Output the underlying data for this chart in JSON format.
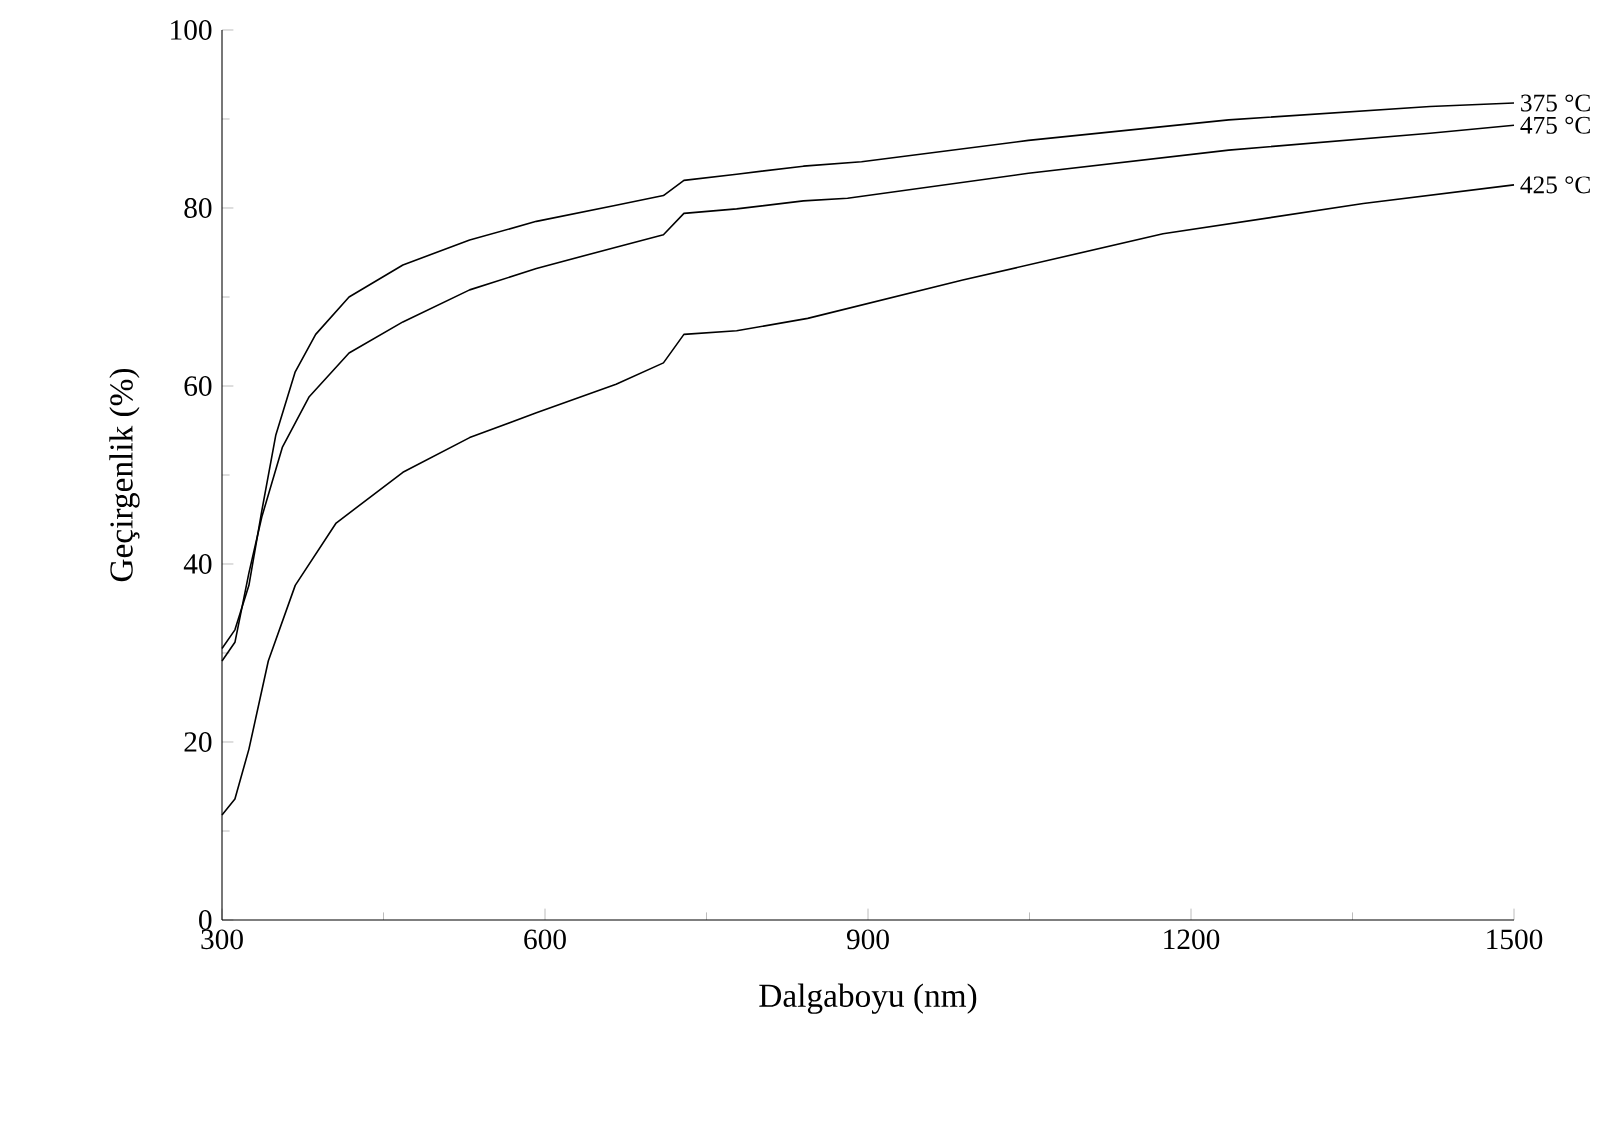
{
  "chart_data": {
    "type": "line",
    "xlabel": "Dalgaboyu (nm)",
    "ylabel": "Geçirgenlik (%)",
    "xlim": [
      300,
      1500
    ],
    "xticks": [
      300,
      600,
      900,
      1200,
      1500
    ],
    "ylim": [
      0,
      100
    ],
    "yticks": [
      0,
      20,
      40,
      60,
      80,
      100
    ],
    "grid": false,
    "legend": false,
    "marker": "none",
    "line_style": "solid",
    "series": [
      {
        "name": "375 °C",
        "color": "#000000",
        "x": [
          300,
          312,
          325,
          337,
          350,
          368,
          387,
          418,
          468,
          530,
          592,
          666,
          710,
          729,
          778,
          840,
          894,
          1049,
          1235,
          1422,
          1500
        ],
        "values": [
          30.5,
          32.6,
          37.6,
          46,
          54.5,
          61.6,
          65.8,
          70,
          73.6,
          76.4,
          78.5,
          80.3,
          81.4,
          83.1,
          83.8,
          84.7,
          85.2,
          87.6,
          89.9,
          91.4,
          91.8
        ]
      },
      {
        "name": "475 °C",
        "color": "#000000",
        "x": [
          300,
          312,
          325,
          337,
          356,
          381,
          418,
          468,
          530,
          592,
          666,
          710,
          729,
          778,
          840,
          881,
          1049,
          1235,
          1422,
          1500
        ],
        "values": [
          29.1,
          31.2,
          39,
          45.3,
          53.1,
          58.8,
          63.7,
          67.2,
          70.8,
          73.2,
          75.6,
          77,
          79.4,
          79.9,
          80.8,
          81.1,
          83.9,
          86.5,
          88.4,
          89.3
        ]
      },
      {
        "name": "425 °C",
        "color": "#000000",
        "x": [
          300,
          312,
          325,
          343,
          368,
          406,
          468,
          530,
          592,
          666,
          710,
          729,
          778,
          844,
          988,
          1174,
          1360,
          1500
        ],
        "values": [
          11.8,
          13.6,
          19.2,
          29.1,
          37.6,
          44.6,
          50.3,
          54.2,
          57,
          60.2,
          62.6,
          65.8,
          66.2,
          67.6,
          71.9,
          77.1,
          80.5,
          82.6
        ]
      }
    ]
  }
}
